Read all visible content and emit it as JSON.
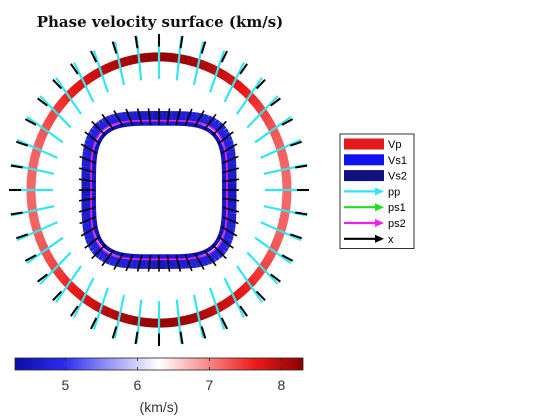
{
  "chart_data": {
    "type": "polar-surface",
    "title": "Phase velocity surface (km/s)",
    "colorbar": {
      "min": 4.3,
      "max": 8.3,
      "ticks": [
        5,
        6,
        7,
        8
      ],
      "tick_labels": [
        "5",
        "6",
        "7",
        "8"
      ],
      "label": "(km/s)",
      "colormap": [
        "#0d0da8",
        "#2a2af0",
        "#9a9af8",
        "#ffffff",
        "#f88a8a",
        "#ee1a1a",
        "#8c0000"
      ]
    },
    "legend": {
      "placement": "right",
      "entries": [
        {
          "label": "Vp",
          "kind": "patch",
          "color": "#e31a1c"
        },
        {
          "label": "Vs1",
          "kind": "patch",
          "color": "#1111ee"
        },
        {
          "label": "Vs2",
          "kind": "patch",
          "color": "#101080"
        },
        {
          "label": "pp",
          "kind": "arrow",
          "color": "#33e5f0"
        },
        {
          "label": "ps1",
          "kind": "arrow",
          "color": "#22dd22"
        },
        {
          "label": "ps2",
          "kind": "arrow",
          "color": "#ee22ee"
        },
        {
          "label": "x",
          "kind": "arrow",
          "color": "#000000"
        }
      ]
    },
    "surfaces": {
      "Vp": {
        "min": 7.0,
        "max": 8.3
      },
      "Vs1": {
        "min": 4.5,
        "max": 4.8
      },
      "Vs2": {
        "min": 4.3,
        "max": 4.6
      }
    }
  }
}
